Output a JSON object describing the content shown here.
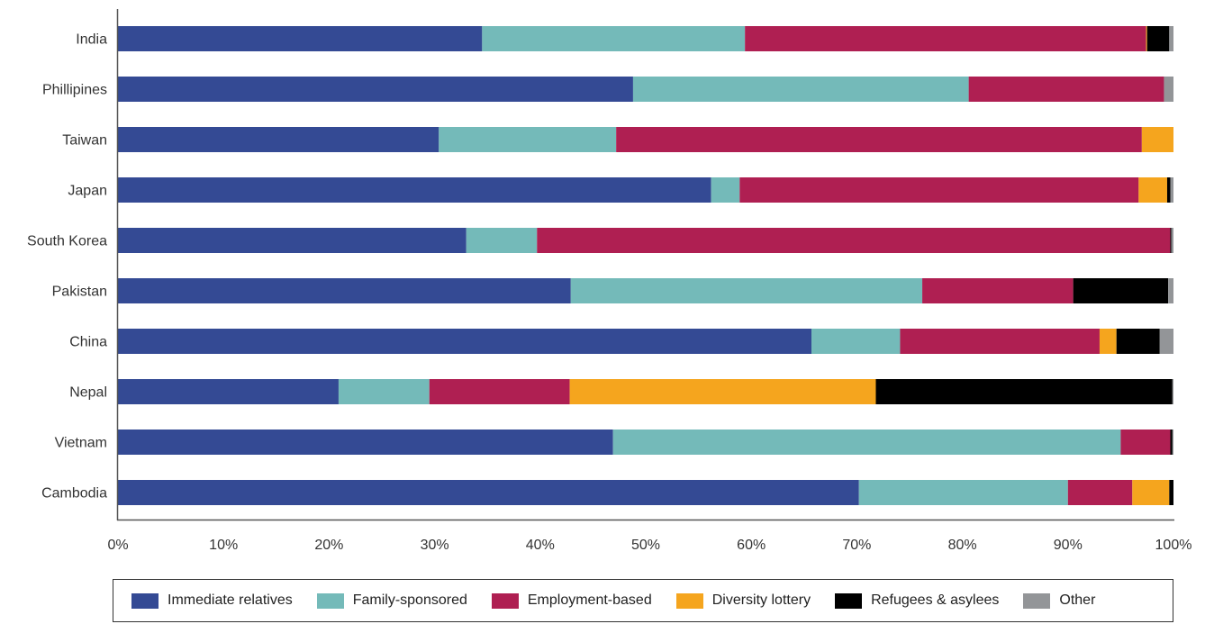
{
  "chart_data": {
    "type": "bar",
    "orientation": "horizontal",
    "stacked": true,
    "percent_stacked": true,
    "categories": [
      "India",
      "Phillipines",
      "Taiwan",
      "Japan",
      "South Korea",
      "Pakistan",
      "China",
      "Nepal",
      "Vietnam",
      "Cambodia"
    ],
    "series": [
      {
        "name": "Immediate relatives",
        "color": "#344A94",
        "values": [
          34.5,
          48.8,
          30.4,
          56.2,
          33.0,
          42.9,
          65.7,
          20.9,
          46.9,
          70.2
        ]
      },
      {
        "name": "Family-sponsored",
        "color": "#74BAB9",
        "values": [
          24.9,
          31.8,
          16.8,
          2.7,
          6.7,
          33.3,
          8.4,
          8.6,
          48.1,
          19.8
        ]
      },
      {
        "name": "Employment-based",
        "color": "#AF1F52",
        "values": [
          38.0,
          18.5,
          49.8,
          37.8,
          60.0,
          14.3,
          18.9,
          13.3,
          4.7,
          6.1
        ]
      },
      {
        "name": "Diversity lottery",
        "color": "#F5A51E",
        "values": [
          0.1,
          0.0,
          3.0,
          2.7,
          0.0,
          0.0,
          1.6,
          29.0,
          0.0,
          3.5
        ]
      },
      {
        "name": "Refugees & asylees",
        "color": "#000000",
        "values": [
          2.1,
          0.0,
          0.0,
          0.3,
          0.1,
          9.0,
          4.1,
          28.1,
          0.2,
          0.4
        ]
      },
      {
        "name": "Other",
        "color": "#939598",
        "values": [
          0.4,
          0.9,
          0.0,
          0.3,
          0.2,
          0.5,
          1.3,
          0.1,
          0.1,
          0.0
        ]
      }
    ],
    "x_ticks": [
      "0%",
      "10%",
      "20%",
      "30%",
      "40%",
      "50%",
      "60%",
      "70%",
      "80%",
      "90%",
      "100%"
    ],
    "xlim": [
      0,
      100
    ],
    "grid": false,
    "legend_position": "bottom"
  }
}
